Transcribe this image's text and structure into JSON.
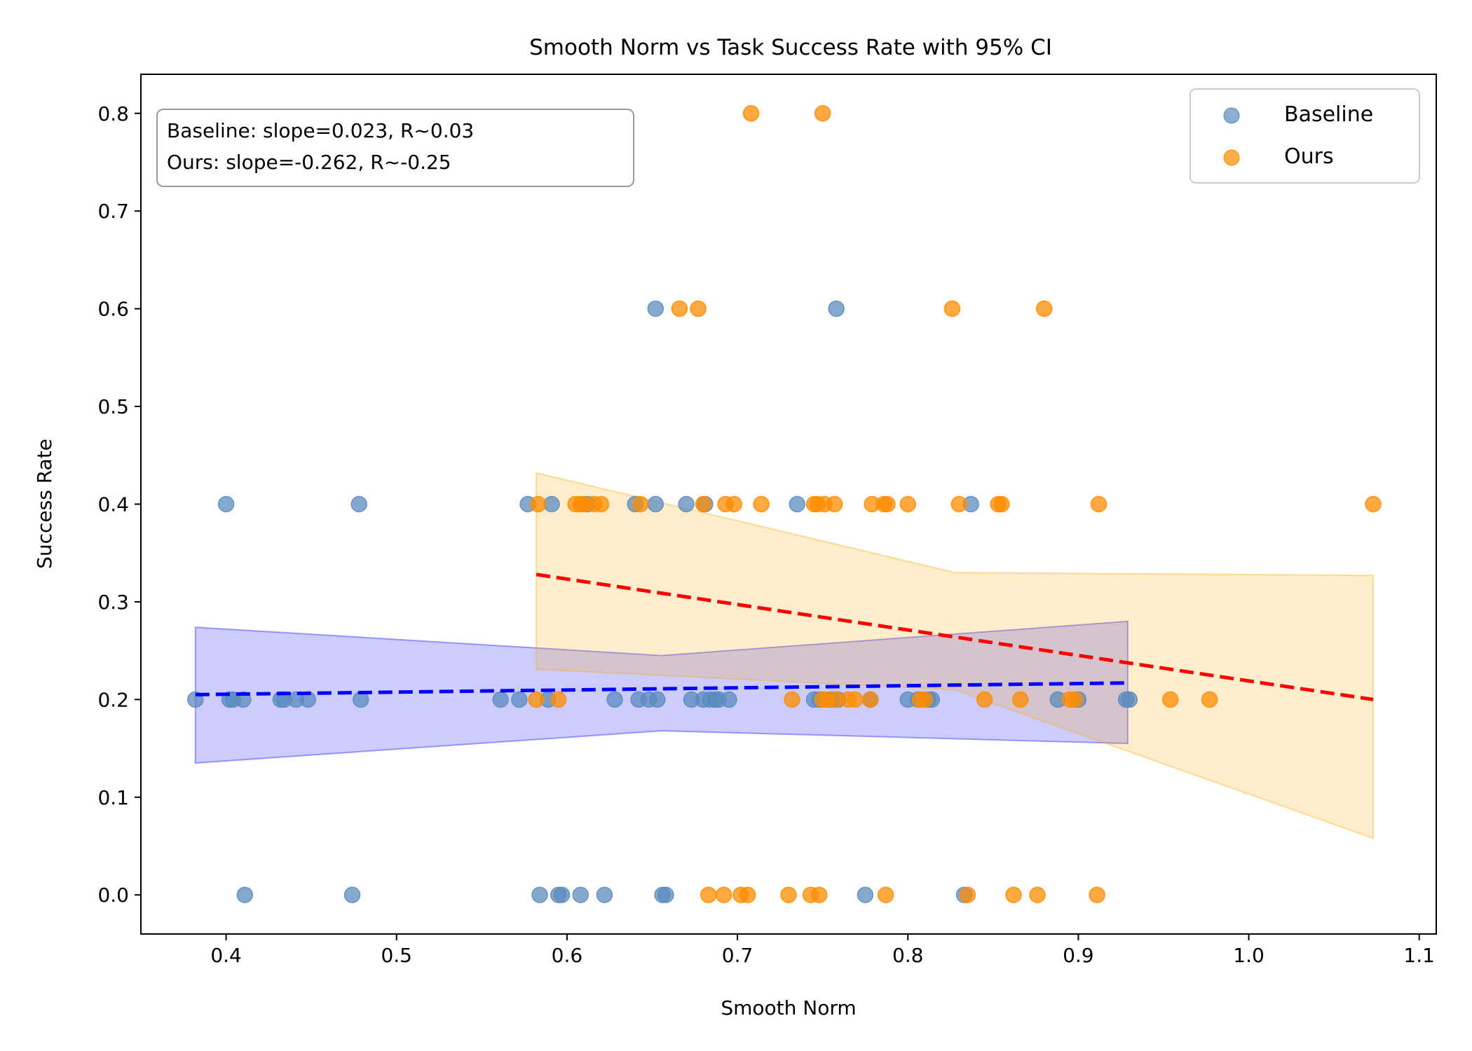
{
  "chart_data": {
    "type": "scatter",
    "title": "Smooth Norm vs Task Success Rate with 95% CI",
    "xlabel": "Smooth Norm",
    "ylabel": "Success Rate",
    "xlim": [
      0.35,
      1.11
    ],
    "ylim": [
      -0.04,
      0.84
    ],
    "xticks": [
      "0.4",
      "0.5",
      "0.6",
      "0.7",
      "0.8",
      "0.9",
      "1.0",
      "1.1"
    ],
    "yticks": [
      "0.0",
      "0.1",
      "0.2",
      "0.3",
      "0.4",
      "0.5",
      "0.6",
      "0.7",
      "0.8"
    ],
    "grid": false,
    "legend_position": "top-right",
    "annotation": [
      "Baseline: slope=0.023, R~0.03",
      "Ours: slope=-0.262, R~-0.25"
    ],
    "series": [
      {
        "name": "Baseline",
        "color": "#5b8bbd",
        "points": [
          [
            0.382,
            0.2
          ],
          [
            0.4,
            0.4
          ],
          [
            0.402,
            0.2
          ],
          [
            0.404,
            0.2
          ],
          [
            0.41,
            0.2
          ],
          [
            0.411,
            0.0
          ],
          [
            0.432,
            0.2
          ],
          [
            0.434,
            0.2
          ],
          [
            0.441,
            0.2
          ],
          [
            0.448,
            0.2
          ],
          [
            0.474,
            0.0
          ],
          [
            0.478,
            0.4
          ],
          [
            0.479,
            0.2
          ],
          [
            0.561,
            0.2
          ],
          [
            0.572,
            0.2
          ],
          [
            0.577,
            0.4
          ],
          [
            0.584,
            0.0
          ],
          [
            0.589,
            0.2
          ],
          [
            0.591,
            0.4
          ],
          [
            0.595,
            0.0
          ],
          [
            0.597,
            0.0
          ],
          [
            0.608,
            0.0
          ],
          [
            0.612,
            0.4
          ],
          [
            0.622,
            0.0
          ],
          [
            0.628,
            0.2
          ],
          [
            0.64,
            0.4
          ],
          [
            0.642,
            0.2
          ],
          [
            0.648,
            0.2
          ],
          [
            0.652,
            0.6
          ],
          [
            0.652,
            0.4
          ],
          [
            0.653,
            0.2
          ],
          [
            0.656,
            0.0
          ],
          [
            0.658,
            0.0
          ],
          [
            0.67,
            0.4
          ],
          [
            0.673,
            0.2
          ],
          [
            0.68,
            0.2
          ],
          [
            0.681,
            0.4
          ],
          [
            0.684,
            0.2
          ],
          [
            0.687,
            0.2
          ],
          [
            0.689,
            0.2
          ],
          [
            0.695,
            0.2
          ],
          [
            0.735,
            0.4
          ],
          [
            0.745,
            0.2
          ],
          [
            0.748,
            0.2
          ],
          [
            0.755,
            0.2
          ],
          [
            0.758,
            0.6
          ],
          [
            0.759,
            0.2
          ],
          [
            0.775,
            0.0
          ],
          [
            0.778,
            0.2
          ],
          [
            0.8,
            0.2
          ],
          [
            0.806,
            0.2
          ],
          [
            0.812,
            0.2
          ],
          [
            0.814,
            0.2
          ],
          [
            0.833,
            0.0
          ],
          [
            0.837,
            0.4
          ],
          [
            0.888,
            0.2
          ],
          [
            0.9,
            0.2
          ],
          [
            0.928,
            0.2
          ],
          [
            0.93,
            0.2
          ]
        ],
        "fit": {
          "x0": 0.382,
          "x1": 0.929,
          "y0": 0.205,
          "y1": 0.217
        },
        "ci": {
          "upper": [
            0.274,
            0.28
          ],
          "lower": [
            0.135,
            0.155
          ],
          "mid_upper": 0.245,
          "mid_lower": 0.168
        }
      },
      {
        "name": "Ours",
        "color": "#ff8c00",
        "points": [
          [
            0.582,
            0.2
          ],
          [
            0.583,
            0.4
          ],
          [
            0.595,
            0.2
          ],
          [
            0.605,
            0.4
          ],
          [
            0.608,
            0.4
          ],
          [
            0.61,
            0.4
          ],
          [
            0.616,
            0.4
          ],
          [
            0.62,
            0.4
          ],
          [
            0.643,
            0.4
          ],
          [
            0.666,
            0.6
          ],
          [
            0.677,
            0.6
          ],
          [
            0.68,
            0.4
          ],
          [
            0.683,
            0.0
          ],
          [
            0.692,
            0.0
          ],
          [
            0.693,
            0.4
          ],
          [
            0.698,
            0.4
          ],
          [
            0.702,
            0.0
          ],
          [
            0.706,
            0.0
          ],
          [
            0.708,
            0.8
          ],
          [
            0.714,
            0.4
          ],
          [
            0.73,
            0.0
          ],
          [
            0.732,
            0.2
          ],
          [
            0.743,
            0.0
          ],
          [
            0.745,
            0.4
          ],
          [
            0.747,
            0.4
          ],
          [
            0.748,
            0.0
          ],
          [
            0.75,
            0.2
          ],
          [
            0.75,
            0.8
          ],
          [
            0.751,
            0.4
          ],
          [
            0.753,
            0.2
          ],
          [
            0.757,
            0.4
          ],
          [
            0.758,
            0.2
          ],
          [
            0.765,
            0.2
          ],
          [
            0.769,
            0.2
          ],
          [
            0.778,
            0.2
          ],
          [
            0.779,
            0.4
          ],
          [
            0.786,
            0.4
          ],
          [
            0.787,
            0.0
          ],
          [
            0.788,
            0.4
          ],
          [
            0.8,
            0.4
          ],
          [
            0.807,
            0.2
          ],
          [
            0.81,
            0.2
          ],
          [
            0.826,
            0.6
          ],
          [
            0.83,
            0.4
          ],
          [
            0.835,
            0.0
          ],
          [
            0.845,
            0.2
          ],
          [
            0.853,
            0.4
          ],
          [
            0.855,
            0.4
          ],
          [
            0.862,
            0.0
          ],
          [
            0.866,
            0.2
          ],
          [
            0.88,
            0.6
          ],
          [
            0.876,
            0.0
          ],
          [
            0.895,
            0.2
          ],
          [
            0.898,
            0.2
          ],
          [
            0.911,
            0.0
          ],
          [
            0.912,
            0.4
          ],
          [
            0.954,
            0.2
          ],
          [
            0.977,
            0.2
          ],
          [
            1.073,
            0.4
          ]
        ],
        "fit": {
          "x0": 0.582,
          "x1": 1.073,
          "y0": 0.328,
          "y1": 0.2
        },
        "ci": {
          "upper": [
            0.432,
            0.327
          ],
          "lower": [
            0.231,
            0.058
          ],
          "mid_upper": 0.33,
          "mid_lower": 0.21
        }
      }
    ]
  }
}
